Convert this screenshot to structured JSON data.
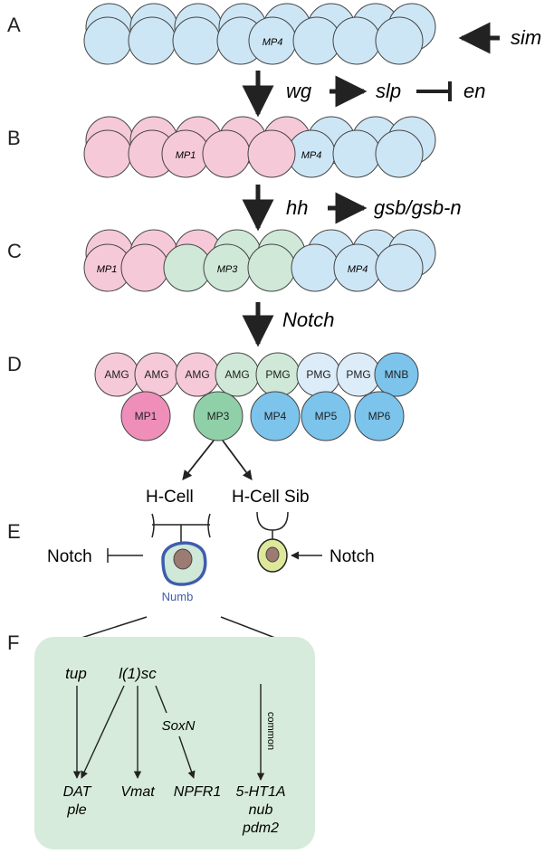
{
  "panels": [
    "A",
    "B",
    "C",
    "D",
    "E",
    "F"
  ],
  "colors": {
    "blue": "#cde6f5",
    "pink": "#f6c9d8",
    "green": "#cfe8d7",
    "blue_dark": "#7cc4ec",
    "pink_dark": "#ef8fb9",
    "green_dark": "#8fd0a8",
    "pale_blue": "#dcecf8",
    "box_fill": "#d6ebdb",
    "numb_blue": "#3f5dad",
    "sib_fill": "#dde89a",
    "nucleus": "#9c7b72"
  },
  "a": {
    "cell_label": "MP4",
    "signal": "sim"
  },
  "ab": {
    "gene1": "wg",
    "gene2": "slp",
    "gene3": "en"
  },
  "b": {
    "cell_label_1": "MP1",
    "cell_label_2": "MP4"
  },
  "bc": {
    "gene1": "hh",
    "gene2": "gsb/gsb-n"
  },
  "c": {
    "cell_label_1": "MP1",
    "cell_label_2": "MP3",
    "cell_label_3": "MP4"
  },
  "cd": {
    "signal": "Notch"
  },
  "d": {
    "top_row": [
      "AMG",
      "AMG",
      "AMG",
      "AMG",
      "PMG",
      "PMG",
      "PMG",
      "MNB"
    ],
    "bottom_row": [
      "MP1",
      "MP3",
      "MP4",
      "MP5",
      "MP6"
    ]
  },
  "e": {
    "h_cell": "H-Cell",
    "h_cell_sib": "H-Cell Sib",
    "notch_left": "Notch",
    "notch_right": "Notch",
    "numb": "Numb"
  },
  "f": {
    "top_genes": [
      "tup",
      "l(1)sc"
    ],
    "sox": "SoxN",
    "common": "common",
    "targets": [
      "DAT",
      "ple",
      "Vmat",
      "NPFR1",
      "5-HT1A",
      "nub",
      "pdm2"
    ]
  }
}
